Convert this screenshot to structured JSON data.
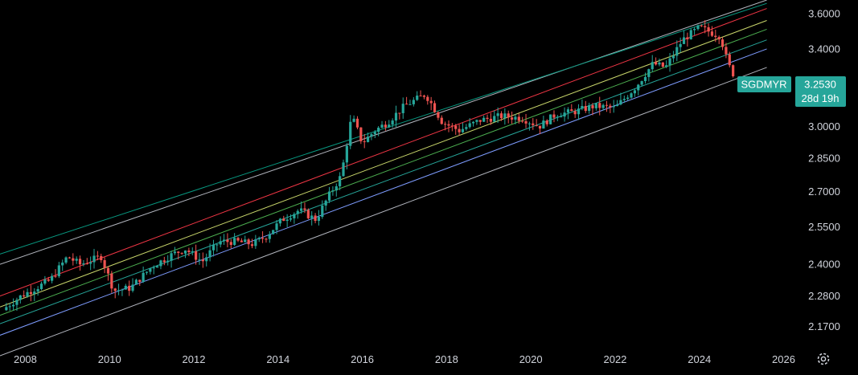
{
  "symbol_label": "SGDMYR",
  "price_label": "3.2530",
  "countdown_label": "28d 19h",
  "colors": {
    "background": "#000000",
    "axis_text": "#d1d4dc",
    "candle_up": "#26a69a",
    "candle_down": "#ef5350",
    "badge": "#26a69a",
    "channel_outer": "#b2b5be",
    "channel_top": "#089981",
    "channel_red": "#f23645",
    "channel_yellow": "#c9d66b",
    "channel_green": "#4caf50",
    "channel_teal": "#26a69a",
    "channel_blue": "#7e9cff"
  },
  "settings_icon": "gear-icon",
  "chart_data": {
    "type": "candlestick",
    "title": "",
    "y_scale": "log",
    "ylim": [
      2.1,
      3.68
    ],
    "xlim": [
      2007.4,
      2026.2
    ],
    "grid": false,
    "y_ticks": [
      "3.6000",
      "3.4000",
      "3.0000",
      "2.8500",
      "2.7000",
      "2.5500",
      "2.4000",
      "2.2800",
      "2.1700"
    ],
    "x_ticks": [
      "2008",
      "2010",
      "2012",
      "2014",
      "2016",
      "2018",
      "2020",
      "2022",
      "2024",
      "2026"
    ],
    "last_price": 3.253,
    "channel_lines": [
      {
        "name": "",
        "color_key": "channel_outer",
        "x": [
          2007.4,
          2025.6
        ],
        "y": [
          2.4,
          3.68
        ]
      },
      {
        "name": "",
        "color_key": "channel_top",
        "x": [
          2007.4,
          2025.6
        ],
        "y": [
          2.44,
          3.66
        ]
      },
      {
        "name": "",
        "color_key": "channel_red",
        "x": [
          2007.4,
          2025.6
        ],
        "y": [
          2.28,
          3.63
        ]
      },
      {
        "name": "",
        "color_key": "channel_yellow",
        "x": [
          2007.4,
          2025.6
        ],
        "y": [
          2.24,
          3.56
        ]
      },
      {
        "name": "",
        "color_key": "channel_green",
        "x": [
          2007.4,
          2025.6
        ],
        "y": [
          2.21,
          3.51
        ]
      },
      {
        "name": "",
        "color_key": "channel_teal",
        "x": [
          2007.4,
          2025.6
        ],
        "y": [
          2.18,
          3.45
        ]
      },
      {
        "name": "",
        "color_key": "channel_blue",
        "x": [
          2007.4,
          2025.6
        ],
        "y": [
          2.14,
          3.4
        ]
      },
      {
        "name": "",
        "color_key": "channel_outer",
        "x": [
          2007.4,
          2025.6
        ],
        "y": [
          2.07,
          3.3
        ]
      }
    ],
    "close_anchors": {
      "x": [
        2007.55,
        2007.9,
        2008.6,
        2009.0,
        2009.3,
        2009.8,
        2010.1,
        2010.5,
        2011.0,
        2011.5,
        2011.8,
        2012.2,
        2012.6,
        2013.0,
        2013.4,
        2013.7,
        2014.1,
        2014.5,
        2014.9,
        2015.2,
        2015.5,
        2015.75,
        2016.0,
        2016.3,
        2016.6,
        2017.0,
        2017.5,
        2017.9,
        2018.3,
        2018.8,
        2019.3,
        2019.8,
        2020.2,
        2020.6,
        2021.0,
        2021.5,
        2022.0,
        2022.5,
        2022.9,
        2023.2,
        2023.6,
        2024.0,
        2024.2,
        2024.5,
        2024.65,
        2024.8
      ],
      "y": [
        2.24,
        2.28,
        2.34,
        2.43,
        2.4,
        2.43,
        2.3,
        2.31,
        2.39,
        2.44,
        2.46,
        2.41,
        2.49,
        2.49,
        2.48,
        2.51,
        2.58,
        2.62,
        2.58,
        2.68,
        2.77,
        3.05,
        2.92,
        2.98,
        3.02,
        3.1,
        3.16,
        3.02,
        2.98,
        3.03,
        3.05,
        3.04,
        3.0,
        3.06,
        3.07,
        3.1,
        3.09,
        3.2,
        3.32,
        3.3,
        3.45,
        3.52,
        3.5,
        3.47,
        3.34,
        3.253
      ]
    }
  }
}
